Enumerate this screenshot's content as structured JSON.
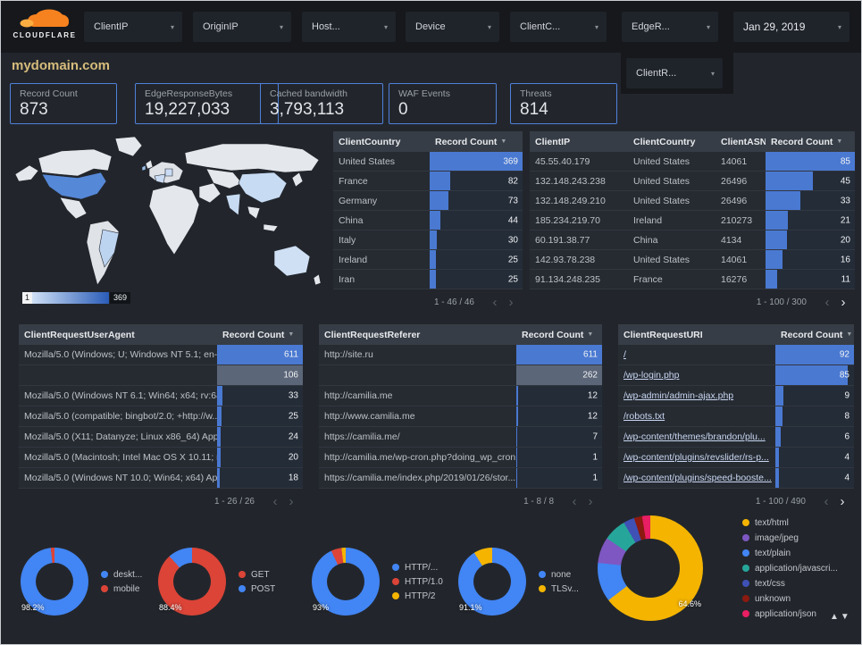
{
  "theme": {
    "accent_blue": "#4f80da",
    "bar_blue": "#4a79d2",
    "title_gold": "#d6bc7c",
    "donut_blue": "#4285F4",
    "donut_red": "#DB4437",
    "donut_yellow": "#F4B400"
  },
  "icons": {
    "caret_down": "▾",
    "sort_desc": "▼",
    "prev": "‹",
    "next": "›"
  },
  "header": {
    "brand": "CLOUDFLARE",
    "filters": [
      "ClientIP",
      "OriginIP",
      "Host...",
      "Device",
      "ClientC...",
      "EdgeR..."
    ],
    "filter_extra": "ClientR...",
    "date": "Jan 29, 2019"
  },
  "page_title": "mydomain.com",
  "kpis": [
    {
      "label": "Record Count",
      "value": "873"
    },
    {
      "label": "EdgeResponseBytes",
      "value": "19,227,033"
    },
    {
      "label": "Cached bandwidth",
      "value": "3,793,113"
    },
    {
      "label": "WAF Events",
      "value": "0"
    },
    {
      "label": "Threats",
      "value": "814"
    }
  ],
  "map": {
    "legend_min": "1",
    "legend_max": "369"
  },
  "tables": {
    "country": {
      "columns": [
        "ClientCountry",
        "Record Count"
      ],
      "rows": [
        {
          "cells": [
            "United States"
          ],
          "value": "369",
          "bar": 100
        },
        {
          "cells": [
            "France"
          ],
          "value": "82",
          "bar": 22
        },
        {
          "cells": [
            "Germany"
          ],
          "value": "73",
          "bar": 20
        },
        {
          "cells": [
            "China"
          ],
          "value": "44",
          "bar": 12
        },
        {
          "cells": [
            "Italy"
          ],
          "value": "30",
          "bar": 8
        },
        {
          "cells": [
            "Ireland"
          ],
          "value": "25",
          "bar": 7
        },
        {
          "cells": [
            "Iran"
          ],
          "value": "25",
          "bar": 7
        }
      ],
      "pagination": "1 - 46 / 46",
      "prev_enabled": false,
      "next_enabled": false
    },
    "client_ip": {
      "columns": [
        "ClientIP",
        "ClientCountry",
        "ClientASN",
        "Record Count"
      ],
      "rows": [
        {
          "cells": [
            "45.55.40.179",
            "United States",
            "14061"
          ],
          "value": "85",
          "bar": 100
        },
        {
          "cells": [
            "132.148.243.238",
            "United States",
            "26496"
          ],
          "value": "45",
          "bar": 53
        },
        {
          "cells": [
            "132.148.249.210",
            "United States",
            "26496"
          ],
          "value": "33",
          "bar": 39
        },
        {
          "cells": [
            "185.234.219.70",
            "Ireland",
            "210273"
          ],
          "value": "21",
          "bar": 25
        },
        {
          "cells": [
            "60.191.38.77",
            "China",
            "4134"
          ],
          "value": "20",
          "bar": 24
        },
        {
          "cells": [
            "142.93.78.238",
            "United States",
            "14061"
          ],
          "value": "16",
          "bar": 19
        },
        {
          "cells": [
            "91.134.248.235",
            "France",
            "16276"
          ],
          "value": "11",
          "bar": 13
        }
      ],
      "pagination": "1 - 100 / 300",
      "prev_enabled": false,
      "next_enabled": true
    },
    "user_agent": {
      "columns": [
        "ClientRequestUserAgent",
        "Record Count"
      ],
      "rows": [
        {
          "cells": [
            "Mozilla/5.0 (Windows; U; Windows NT 5.1; en-U..."
          ],
          "value": "611",
          "bar": 100
        },
        {
          "cells": [
            ""
          ],
          "value": "106",
          "bar": 17,
          "null_bar": true
        },
        {
          "cells": [
            "Mozilla/5.0 (Windows NT 6.1; Win64; x64; rv:64..."
          ],
          "value": "33",
          "bar": 6
        },
        {
          "cells": [
            "Mozilla/5.0 (compatible; bingbot/2.0; +http://w..."
          ],
          "value": "25",
          "bar": 5
        },
        {
          "cells": [
            "Mozilla/5.0 (X11; Datanyze; Linux x86_64) Appl..."
          ],
          "value": "24",
          "bar": 4
        },
        {
          "cells": [
            "Mozilla/5.0 (Macintosh; Intel Mac OS X 10.11; r..."
          ],
          "value": "20",
          "bar": 4
        },
        {
          "cells": [
            "Mozilla/5.0 (Windows NT 10.0; Win64; x64) App..."
          ],
          "value": "18",
          "bar": 3
        }
      ],
      "pagination": "1 - 26 / 26",
      "prev_enabled": false,
      "next_enabled": false
    },
    "referer": {
      "columns": [
        "ClientRequestReferer",
        "Record Count"
      ],
      "rows": [
        {
          "cells": [
            "http://site.ru"
          ],
          "value": "611",
          "bar": 100
        },
        {
          "cells": [
            ""
          ],
          "value": "262",
          "bar": 43,
          "null_bar": true
        },
        {
          "cells": [
            "http://camilia.me"
          ],
          "value": "12",
          "bar": 2
        },
        {
          "cells": [
            "http://www.camilia.me"
          ],
          "value": "12",
          "bar": 2
        },
        {
          "cells": [
            "https://camilia.me/"
          ],
          "value": "7",
          "bar": 1.2
        },
        {
          "cells": [
            "http://camilia.me/wp-cron.php?doing_wp_cron..."
          ],
          "value": "1",
          "bar": 0.5
        },
        {
          "cells": [
            "https://camilia.me/index.php/2019/01/26/stor..."
          ],
          "value": "1",
          "bar": 0.5
        }
      ],
      "pagination": "1 - 8 / 8",
      "prev_enabled": false,
      "next_enabled": false
    },
    "uri": {
      "columns": [
        "ClientRequestURI",
        "Record Count"
      ],
      "link_labels": true,
      "rows": [
        {
          "cells": [
            "/"
          ],
          "value": "92",
          "bar": 100
        },
        {
          "cells": [
            "/wp-login.php"
          ],
          "value": "85",
          "bar": 92
        },
        {
          "cells": [
            "/wp-admin/admin-ajax.php"
          ],
          "value": "9",
          "bar": 10
        },
        {
          "cells": [
            "/robots.txt"
          ],
          "value": "8",
          "bar": 9
        },
        {
          "cells": [
            "/wp-content/themes/brandon/plu..."
          ],
          "value": "6",
          "bar": 7
        },
        {
          "cells": [
            "/wp-content/plugins/revslider/rs-p..."
          ],
          "value": "4",
          "bar": 4
        },
        {
          "cells": [
            "/wp-content/plugins/speed-booste..."
          ],
          "value": "4",
          "bar": 4
        }
      ],
      "pagination": "1 - 100 / 490",
      "prev_enabled": false,
      "next_enabled": true
    }
  },
  "donuts": [
    {
      "name": "device-type",
      "pct_label": "98.2%",
      "size": 76,
      "slices": [
        {
          "color": "#4285F4",
          "value": 98.2
        },
        {
          "color": "#DB4437",
          "value": 1.8
        }
      ],
      "legend": [
        {
          "color": "#4285F4",
          "label": "deskt..."
        },
        {
          "color": "#DB4437",
          "label": "mobile"
        }
      ]
    },
    {
      "name": "request-method",
      "pct_label": "88.4%",
      "size": 76,
      "slices": [
        {
          "color": "#DB4437",
          "value": 88.4
        },
        {
          "color": "#4285F4",
          "value": 11.6
        }
      ],
      "legend": [
        {
          "color": "#DB4437",
          "label": "GET"
        },
        {
          "color": "#4285F4",
          "label": "POST"
        }
      ]
    },
    {
      "name": "http-protocol",
      "pct_label": "93%",
      "size": 76,
      "slices": [
        {
          "color": "#4285F4",
          "value": 93
        },
        {
          "color": "#DB4437",
          "value": 5
        },
        {
          "color": "#F4B400",
          "value": 2
        }
      ],
      "legend": [
        {
          "color": "#4285F4",
          "label": "HTTP/..."
        },
        {
          "color": "#DB4437",
          "label": "HTTP/1.0"
        },
        {
          "color": "#F4B400",
          "label": "HTTP/2"
        }
      ]
    },
    {
      "name": "tls-version",
      "pct_label": "91.1%",
      "size": 76,
      "slices": [
        {
          "color": "#4285F4",
          "value": 91.1
        },
        {
          "color": "#F4B400",
          "value": 8.9
        }
      ],
      "legend": [
        {
          "color": "#4285F4",
          "label": "none"
        },
        {
          "color": "#F4B400",
          "label": "TLSv..."
        }
      ]
    },
    {
      "name": "content-type",
      "pct_label": "64.6%",
      "size": 118,
      "slices": [
        {
          "color": "#F4B400",
          "value": 64.6
        },
        {
          "color": "#4285F4",
          "value": 12
        },
        {
          "color": "#7E57C2",
          "value": 8
        },
        {
          "color": "#26A69A",
          "value": 7
        },
        {
          "color": "#3F51B5",
          "value": 3.4
        },
        {
          "color": "#8B1A10",
          "value": 2.5
        },
        {
          "color": "#E91E63",
          "value": 2.5
        }
      ],
      "legend": [
        {
          "color": "#F4B400",
          "label": "text/html"
        },
        {
          "color": "#7E57C2",
          "label": "image/jpeg"
        },
        {
          "color": "#4285F4",
          "label": "text/plain"
        },
        {
          "color": "#26A69A",
          "label": "application/javascri..."
        },
        {
          "color": "#3F51B5",
          "label": "text/css"
        },
        {
          "color": "#8B1A10",
          "label": "unknown"
        },
        {
          "color": "#E91E63",
          "label": "application/json"
        }
      ]
    }
  ],
  "footer": {
    "scroll_arrows": "▲▼"
  }
}
